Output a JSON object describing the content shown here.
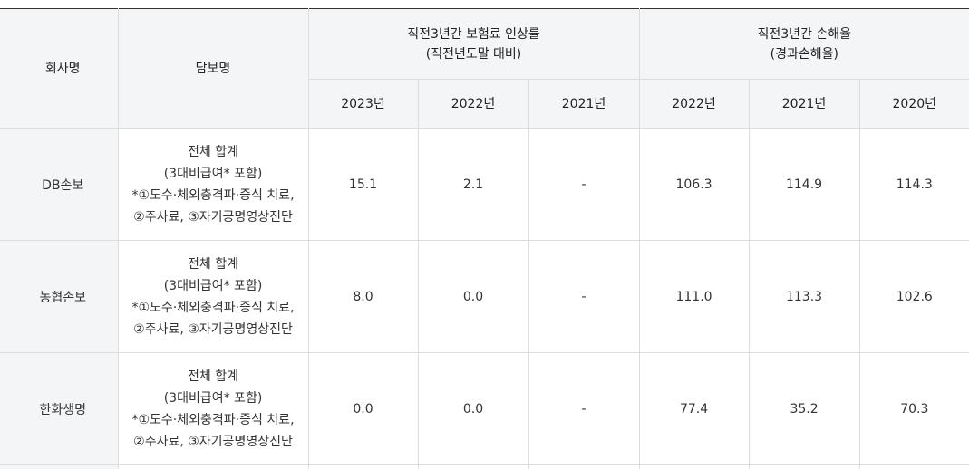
{
  "header": {
    "company": "회사명",
    "coverage": "담보명",
    "rate_group": [
      "직전3년간 보험료 인상률",
      "(직전년도말 대비)"
    ],
    "loss_group": [
      "직전3년간 손해율",
      "(경과손해율)"
    ],
    "rate_years": [
      "2023년",
      "2022년",
      "2021년"
    ],
    "loss_years": [
      "2022년",
      "2021년",
      "2020년"
    ]
  },
  "rows": [
    {
      "company": "DB손보",
      "coverage": [
        "전체 합계",
        "(3대비급여* 포함)",
        "*①도수·체외충격파·증식 치료,",
        "②주사료, ③자기공명영상진단"
      ],
      "rates": [
        "15.1",
        "2.1",
        "-"
      ],
      "losses": [
        "106.3",
        "114.9",
        "114.3"
      ]
    },
    {
      "company": "농협손보",
      "coverage": [
        "전체 합계",
        "(3대비급여* 포함)",
        "*①도수·체외충격파·증식 치료,",
        "②주사료, ③자기공명영상진단"
      ],
      "rates": [
        "8.0",
        "0.0",
        "-"
      ],
      "losses": [
        "111.0",
        "113.3",
        "102.6"
      ]
    },
    {
      "company": "한화생명",
      "coverage": [
        "전체 합계",
        "(3대비급여* 포함)",
        "*①도수·체외충격파·증식 치료,",
        "②주사료, ③자기공명영상진단"
      ],
      "rates": [
        "0.0",
        "0.0",
        "-"
      ],
      "losses": [
        "77.4",
        "35.2",
        "70.3"
      ]
    }
  ]
}
